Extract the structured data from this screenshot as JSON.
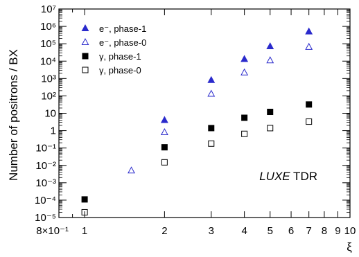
{
  "chart_data": {
    "type": "scatter",
    "title": "",
    "xlabel": "ξ",
    "ylabel": "Number of positrons / BX",
    "x_scale": "log",
    "y_scale": "log",
    "xlim": [
      0.8,
      10
    ],
    "ylim": [
      1e-05,
      10000000.0
    ],
    "x_ticks": [
      {
        "value": 0.8,
        "label": "8×10⁻¹"
      },
      {
        "value": 1,
        "label": "1"
      },
      {
        "value": 2,
        "label": "2"
      },
      {
        "value": 3,
        "label": "3"
      },
      {
        "value": 4,
        "label": "4"
      },
      {
        "value": 5,
        "label": "5"
      },
      {
        "value": 6,
        "label": "6"
      },
      {
        "value": 7,
        "label": "7"
      },
      {
        "value": 8,
        "label": "8"
      },
      {
        "value": 9,
        "label": "9"
      },
      {
        "value": 10,
        "label": "10"
      }
    ],
    "y_ticks": [
      {
        "value": 1e-05,
        "label": "10⁻⁵"
      },
      {
        "value": 0.0001,
        "label": "10⁻⁴"
      },
      {
        "value": 0.001,
        "label": "10⁻³"
      },
      {
        "value": 0.01,
        "label": "10⁻²"
      },
      {
        "value": 0.1,
        "label": "10⁻¹"
      },
      {
        "value": 1,
        "label": "1"
      },
      {
        "value": 10,
        "label": "10"
      },
      {
        "value": 100.0,
        "label": "10²"
      },
      {
        "value": 1000.0,
        "label": "10³"
      },
      {
        "value": 10000.0,
        "label": "10⁴"
      },
      {
        "value": 100000.0,
        "label": "10⁵"
      },
      {
        "value": 1000000.0,
        "label": "10⁶"
      },
      {
        "value": 10000000.0,
        "label": "10⁷"
      }
    ],
    "legend_position": "top-left",
    "series": [
      {
        "name": "e⁻, phase-1",
        "marker": "triangle-filled",
        "color": "#2a2acc",
        "points": [
          [
            2,
            4
          ],
          [
            3,
            800
          ],
          [
            4,
            13000
          ],
          [
            5,
            70000
          ],
          [
            7,
            500000
          ]
        ]
      },
      {
        "name": "e⁻, phase-0",
        "marker": "triangle-open",
        "color": "#2a2acc",
        "points": [
          [
            1.5,
            0.005
          ],
          [
            2,
            0.8
          ],
          [
            3,
            130
          ],
          [
            4,
            2200
          ],
          [
            5,
            11000
          ],
          [
            7,
            65000
          ]
        ]
      },
      {
        "name": "γ, phase-1",
        "marker": "square-filled",
        "color": "#000000",
        "points": [
          [
            1,
            0.00011
          ],
          [
            2,
            0.11
          ],
          [
            3,
            1.4
          ],
          [
            4,
            5.5
          ],
          [
            5,
            12
          ],
          [
            7,
            32
          ]
        ]
      },
      {
        "name": "γ, phase-0",
        "marker": "square-open",
        "color": "#000000",
        "points": [
          [
            1,
            2e-05
          ],
          [
            2,
            0.015
          ],
          [
            3,
            0.18
          ],
          [
            4,
            0.65
          ],
          [
            5,
            1.4
          ],
          [
            7,
            3.3
          ]
        ]
      }
    ],
    "annotation": {
      "italic": "LUXE",
      "regular": " TDR"
    }
  }
}
